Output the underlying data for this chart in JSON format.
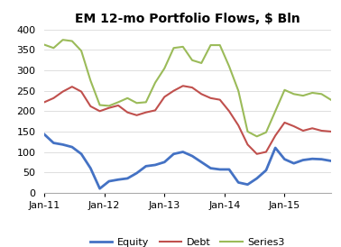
{
  "title": "EM 12-mo Portfolio Flows, $ Bln",
  "xlabels": [
    "Jan-11",
    "Jan-12",
    "Jan-13",
    "Jan-14",
    "Jan-15"
  ],
  "ylim": [
    0,
    400
  ],
  "yticks": [
    0,
    50,
    100,
    150,
    200,
    250,
    300,
    350,
    400
  ],
  "legend": [
    "Equity",
    "Debt",
    "Series3"
  ],
  "equity_color": "#4472C4",
  "debt_color": "#C0504D",
  "series3_color": "#9BBB59",
  "equity": [
    143,
    122,
    118,
    112,
    95,
    60,
    10,
    28,
    32,
    35,
    48,
    65,
    68,
    75,
    95,
    100,
    90,
    75,
    60,
    57,
    57,
    25,
    20,
    35,
    55,
    110,
    82,
    72,
    80,
    83,
    82,
    78
  ],
  "debt": [
    222,
    232,
    248,
    260,
    248,
    212,
    200,
    208,
    214,
    197,
    190,
    197,
    202,
    235,
    250,
    262,
    258,
    242,
    232,
    228,
    200,
    165,
    118,
    95,
    100,
    140,
    172,
    163,
    152,
    158,
    152,
    150
  ],
  "series3": [
    363,
    355,
    375,
    372,
    348,
    275,
    215,
    213,
    222,
    232,
    220,
    222,
    270,
    305,
    355,
    358,
    325,
    318,
    362,
    362,
    310,
    250,
    150,
    138,
    148,
    200,
    252,
    242,
    238,
    245,
    242,
    228
  ],
  "n_points": 32,
  "xtick_positions": [
    0,
    6.5,
    13,
    19.5,
    26
  ],
  "title_fontsize": 10,
  "tick_fontsize": 8,
  "legend_fontsize": 8,
  "linewidth_equity": 2.0,
  "linewidth_debt": 1.5,
  "linewidth_series3": 1.5,
  "grid_color": "#D9D9D9",
  "bg_color": "#FFFFFF",
  "spine_color": "#AAAAAA"
}
